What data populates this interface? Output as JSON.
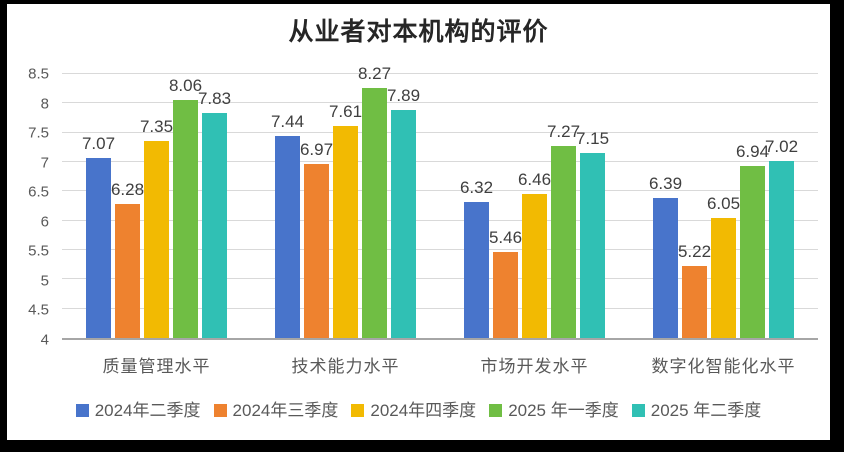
{
  "frame": {
    "background_color": "#000000",
    "canvas_color": "#ffffff"
  },
  "chart_data": {
    "type": "bar",
    "title": "从业者对本机构的评价",
    "categories": [
      "质量管理水平",
      "技术能力水平",
      "市场开发水平",
      "数字化智能化水平"
    ],
    "series": [
      {
        "name": "2024年二季度",
        "color": "#4874CB",
        "values": [
          7.07,
          7.44,
          6.32,
          6.39
        ]
      },
      {
        "name": "2024年三季度",
        "color": "#EE822F",
        "values": [
          6.28,
          6.97,
          5.46,
          5.22
        ]
      },
      {
        "name": "2024年四季度",
        "color": "#F2BA02",
        "values": [
          7.35,
          7.61,
          6.46,
          6.05
        ]
      },
      {
        "name": "2025 年一季度",
        "color": "#70BE44",
        "values": [
          8.06,
          8.27,
          7.27,
          6.94
        ]
      },
      {
        "name": "2025 年二季度",
        "color": "#30C0B4",
        "values": [
          7.83,
          7.89,
          7.15,
          7.02
        ]
      }
    ],
    "ylim": [
      4,
      8.5
    ],
    "ytick_step": 0.5,
    "ytick_labels": [
      "4",
      "4.5",
      "5",
      "5.5",
      "6",
      "6.5",
      "7",
      "7.5",
      "8",
      "8.5"
    ],
    "grid": true,
    "baseline_axis": "x",
    "legend_position": "bottom",
    "data_labels": true,
    "colors": {
      "grid_line": "#d9d9d9",
      "axis_line": "#a6a6a6",
      "axis_text": "#595959",
      "data_label_text": "#3f3f3f",
      "title_text": "#262626"
    }
  }
}
